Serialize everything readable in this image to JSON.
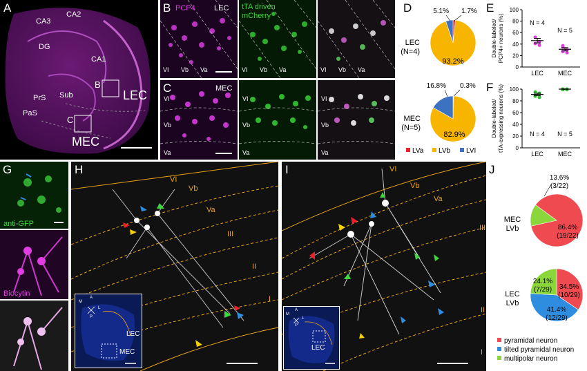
{
  "panels": {
    "A": {
      "label": "A",
      "regions": [
        "CA3",
        "CA2",
        "DG",
        "CA1",
        "PrS",
        "Sub",
        "PaS",
        "LEC",
        "MEC"
      ],
      "box_labels": [
        "B",
        "C"
      ]
    },
    "B": {
      "label": "B",
      "stain": "PCP4",
      "area": "LEC",
      "layers": [
        "VI",
        "Vb",
        "Va"
      ],
      "stain2": "tTA driven",
      "stain3": "mCherry"
    },
    "C": {
      "label": "C",
      "area": "MEC",
      "layers": [
        "VI",
        "Vb",
        "Va"
      ]
    },
    "D": {
      "label": "D",
      "legend": [
        "LVa",
        "LVb",
        "LVI"
      ]
    },
    "E": {
      "label": "E",
      "ylabel_1": "Double-labeled/",
      "ylabel_2": "PCP4+ neurons (%)",
      "n_lec": "N = 4",
      "n_mec": "N = 5",
      "xcats": [
        "LEC",
        "MEC"
      ]
    },
    "F": {
      "label": "F",
      "ylabel_1": "Double-labeled/",
      "ylabel_2": "tTA-expressing neurons (%)",
      "n_lec": "N = 4",
      "n_mec": "N = 5",
      "xcats": [
        "LEC",
        "MEC"
      ]
    },
    "G": {
      "label": "G",
      "stain1": "anti-GFP",
      "stain2": "Biocytin"
    },
    "H": {
      "label": "H",
      "layers": [
        "VI",
        "Vb",
        "Va",
        "III",
        "II",
        "I"
      ],
      "inset_labels": [
        "LEC",
        "MEC"
      ],
      "compass": [
        "M",
        "A",
        "L",
        "P"
      ]
    },
    "I": {
      "label": "I",
      "layers": [
        "VI",
        "Vb",
        "Va",
        "III",
        "II",
        "I"
      ],
      "inset_labels": [
        "LEC"
      ],
      "compass": [
        "M",
        "A",
        "L",
        "P"
      ]
    },
    "J": {
      "label": "J",
      "legend": [
        "pyramidal neuron",
        "tilted pyramidal neuron",
        "multipolar neuron"
      ]
    }
  },
  "chart_data": [
    {
      "type": "pie",
      "panel": "D",
      "title": "LEC",
      "subtitle": "(N=4)",
      "categories": [
        "LVa",
        "LVb",
        "LVI"
      ],
      "values": [
        1.7,
        93.2,
        5.1
      ],
      "labels": [
        "1.7%",
        "93.2%",
        "5.1%"
      ],
      "colors": [
        "#e8212b",
        "#f7b500",
        "#3d72c2"
      ]
    },
    {
      "type": "pie",
      "panel": "D",
      "title": "MEC",
      "subtitle": "(N=5)",
      "categories": [
        "LVa",
        "LVb",
        "LVI"
      ],
      "values": [
        0.3,
        82.9,
        16.8
      ],
      "labels": [
        "0.3%",
        "82.9%",
        "16.8%"
      ],
      "colors": [
        "#e8212b",
        "#f7b500",
        "#3d72c2"
      ]
    },
    {
      "type": "scatter",
      "panel": "E",
      "categories": [
        "LEC",
        "MEC"
      ],
      "ylim": [
        0,
        100
      ],
      "yticks": [
        0,
        20,
        40,
        60,
        80,
        100
      ],
      "ylabel": "Double-labeled/ PCP4+ neurons (%)",
      "series": [
        {
          "name": "LEC",
          "points": [
            52,
            44,
            41,
            38
          ],
          "mean": 46,
          "sem": 4
        },
        {
          "name": "MEC",
          "points": [
            35,
            30,
            27,
            25,
            37
          ],
          "mean": 31,
          "sem": 3
        }
      ],
      "colors": [
        "#e23de2",
        "#e23de2"
      ]
    },
    {
      "type": "scatter",
      "panel": "F",
      "categories": [
        "LEC",
        "MEC"
      ],
      "ylim": [
        0,
        100
      ],
      "yticks": [
        0,
        20,
        40,
        60,
        80,
        100
      ],
      "ylabel": "Double-labeled/ tTA-expressing neurons (%)",
      "series": [
        {
          "name": "LEC",
          "points": [
            95,
            93,
            88,
            86
          ],
          "mean": 91,
          "sem": 2
        },
        {
          "name": "MEC",
          "points": [
            100,
            100,
            99,
            99,
            100
          ],
          "mean": 100,
          "sem": 0.3
        }
      ],
      "colors": [
        "#2fbf2f",
        "#2fbf2f"
      ]
    },
    {
      "type": "pie",
      "panel": "J",
      "title": "MEC",
      "subtitle": "LVb",
      "categories": [
        "pyramidal neuron",
        "tilted pyramidal neuron",
        "multipolar neuron"
      ],
      "values": [
        86.4,
        0,
        13.6
      ],
      "labels": [
        "86.4%\n(19/22)",
        "",
        "13.6%\n(3/22)"
      ],
      "colors": [
        "#ef4a50",
        "#2f8de0",
        "#8bd63a"
      ]
    },
    {
      "type": "pie",
      "panel": "J",
      "title": "LEC",
      "subtitle": "LVb",
      "categories": [
        "pyramidal neuron",
        "tilted pyramidal neuron",
        "multipolar neuron"
      ],
      "values": [
        34.5,
        41.4,
        24.1
      ],
      "labels": [
        "34.5%\n(10/29)",
        "41.4%\n(12/29)",
        "24.1%\n(7/29)"
      ],
      "colors": [
        "#ef4a50",
        "#2f8de0",
        "#8bd63a"
      ]
    }
  ]
}
